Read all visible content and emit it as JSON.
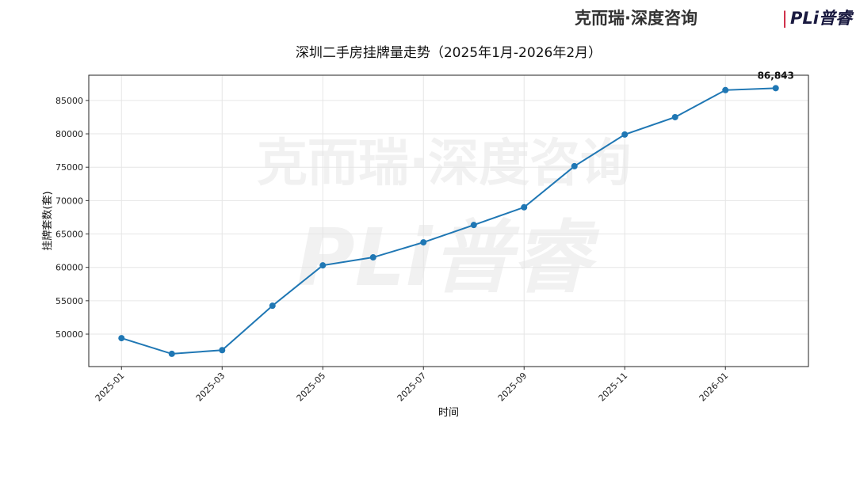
{
  "branding": {
    "brand": "克而瑞·深度咨询",
    "separator": "|",
    "partner": "PLi普睿"
  },
  "watermark": {
    "line1": "克而瑞·深度咨询",
    "line2": "PLi普睿"
  },
  "chart_data": {
    "type": "line",
    "title": "深圳二手房挂牌量走势（2025年1月-2026年2月）",
    "x_label": "时间",
    "y_label": "挂牌套数(套)",
    "x": [
      "2025-01",
      "2025-02",
      "2025-03",
      "2025-04",
      "2025-05",
      "2025-06",
      "2025-07",
      "2025-08",
      "2025-09",
      "2025-10",
      "2025-11",
      "2025-12",
      "2026-01",
      "2026-02"
    ],
    "xticks": [
      "2025-01",
      "2025-03",
      "2025-05",
      "2025-07",
      "2025-09",
      "2025-11",
      "2026-01"
    ],
    "series": [
      {
        "name": "挂牌套数",
        "color": "#1f77b4",
        "values": [
          49400,
          47050,
          47600,
          54250,
          60300,
          61500,
          63750,
          66350,
          69000,
          75150,
          79900,
          82500,
          86550,
          86843
        ],
        "value_labels": [
          null,
          null,
          null,
          null,
          null,
          null,
          null,
          null,
          null,
          null,
          null,
          null,
          null,
          "86,843"
        ]
      }
    ],
    "ylim": [
      45140,
      88780
    ],
    "yticks": [
      50000,
      55000,
      60000,
      65000,
      70000,
      75000,
      80000,
      85000
    ],
    "grid": true
  }
}
